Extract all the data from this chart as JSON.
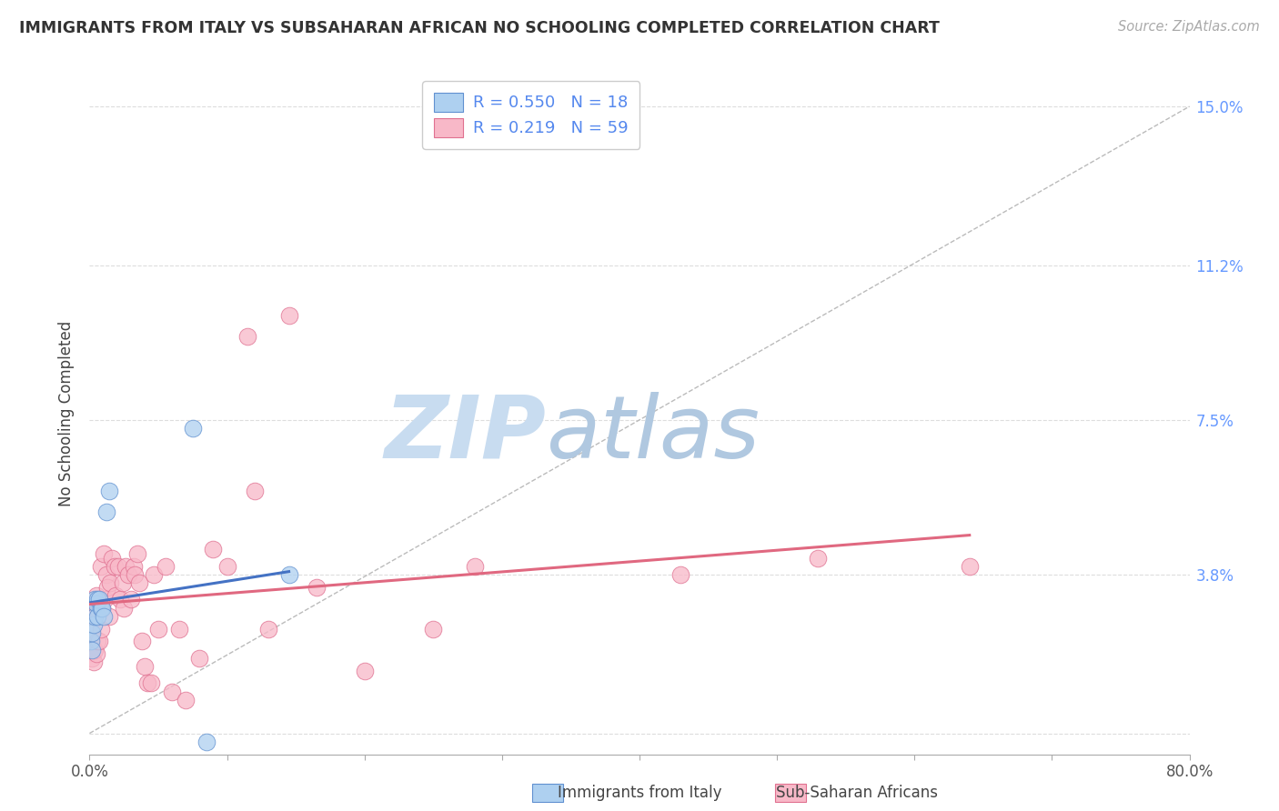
{
  "title": "IMMIGRANTS FROM ITALY VS SUBSAHARAN AFRICAN NO SCHOOLING COMPLETED CORRELATION CHART",
  "source": "Source: ZipAtlas.com",
  "ylabel": "No Schooling Completed",
  "xlim": [
    0.0,
    0.8
  ],
  "ylim": [
    -0.005,
    0.158
  ],
  "xticks": [
    0.0,
    0.1,
    0.2,
    0.3,
    0.4,
    0.5,
    0.6,
    0.7,
    0.8
  ],
  "xticklabels": [
    "0.0%",
    "",
    "",
    "",
    "",
    "",
    "",
    "",
    "80.0%"
  ],
  "ytick_positions": [
    0.0,
    0.038,
    0.075,
    0.112,
    0.15
  ],
  "ytick_labels": [
    "",
    "3.8%",
    "7.5%",
    "11.2%",
    "15.0%"
  ],
  "italy_R": 0.55,
  "italy_N": 18,
  "subsaharan_R": 0.219,
  "subsaharan_N": 59,
  "italy_color": "#AED0F0",
  "subsaharan_color": "#F8B8C8",
  "italy_edge_color": "#6090D0",
  "subsaharan_edge_color": "#E07090",
  "italy_line_color": "#4472C4",
  "subsaharan_line_color": "#E06880",
  "diagonal_color": "#BBBBBB",
  "grid_color": "#DDDDDD",
  "watermark_zip_color": "#C8DCF0",
  "watermark_atlas_color": "#B0C8E0",
  "italy_x": [
    0.001,
    0.002,
    0.002,
    0.003,
    0.004,
    0.004,
    0.005,
    0.006,
    0.006,
    0.007,
    0.008,
    0.009,
    0.01,
    0.012,
    0.014,
    0.075,
    0.085,
    0.145
  ],
  "italy_y": [
    0.022,
    0.02,
    0.024,
    0.026,
    0.028,
    0.032,
    0.031,
    0.032,
    0.028,
    0.032,
    0.03,
    0.03,
    0.028,
    0.053,
    0.058,
    0.073,
    -0.002,
    0.038
  ],
  "sub_x": [
    0.001,
    0.002,
    0.002,
    0.003,
    0.003,
    0.004,
    0.004,
    0.005,
    0.005,
    0.006,
    0.006,
    0.007,
    0.008,
    0.008,
    0.009,
    0.01,
    0.011,
    0.012,
    0.013,
    0.014,
    0.015,
    0.016,
    0.018,
    0.019,
    0.021,
    0.022,
    0.024,
    0.025,
    0.026,
    0.028,
    0.03,
    0.032,
    0.033,
    0.035,
    0.036,
    0.038,
    0.04,
    0.042,
    0.045,
    0.047,
    0.05,
    0.055,
    0.06,
    0.065,
    0.07,
    0.08,
    0.09,
    0.1,
    0.115,
    0.12,
    0.13,
    0.145,
    0.165,
    0.2,
    0.25,
    0.28,
    0.43,
    0.53,
    0.64
  ],
  "sub_y": [
    0.02,
    0.018,
    0.025,
    0.017,
    0.028,
    0.02,
    0.03,
    0.019,
    0.033,
    0.022,
    0.03,
    0.022,
    0.025,
    0.04,
    0.03,
    0.043,
    0.032,
    0.038,
    0.035,
    0.028,
    0.036,
    0.042,
    0.04,
    0.033,
    0.04,
    0.032,
    0.036,
    0.03,
    0.04,
    0.038,
    0.032,
    0.04,
    0.038,
    0.043,
    0.036,
    0.022,
    0.016,
    0.012,
    0.012,
    0.038,
    0.025,
    0.04,
    0.01,
    0.025,
    0.008,
    0.018,
    0.044,
    0.04,
    0.095,
    0.058,
    0.025,
    0.1,
    0.035,
    0.015,
    0.025,
    0.04,
    0.038,
    0.042,
    0.04
  ]
}
